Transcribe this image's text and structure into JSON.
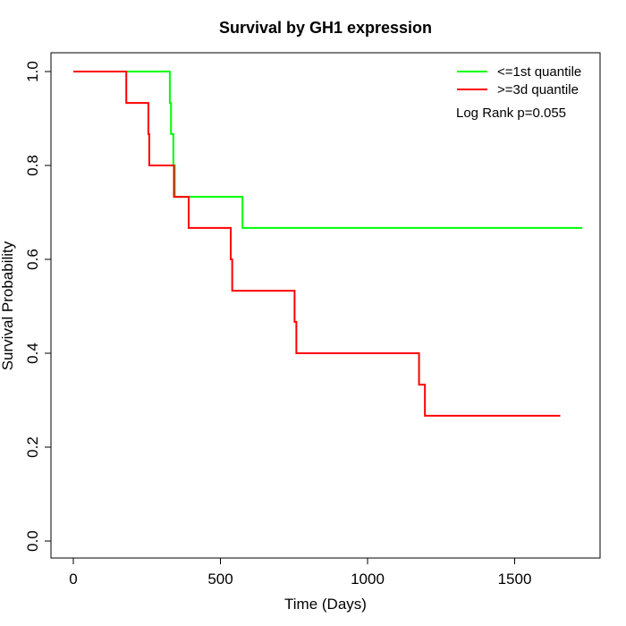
{
  "chart_data": {
    "type": "line",
    "step": true,
    "title": "Survival by GH1 expression",
    "xlabel": "Time (Days)",
    "ylabel": "Survival Probability",
    "xlim": [
      0,
      1750
    ],
    "ylim": [
      0,
      1
    ],
    "x_ticks": [
      0,
      500,
      1000,
      1500
    ],
    "y_ticks": [
      0.0,
      0.2,
      0.4,
      0.6,
      0.8,
      1.0
    ],
    "x_tick_labels": [
      "0",
      "500",
      "1000",
      "1500"
    ],
    "y_tick_labels": [
      "0.0",
      "0.2",
      "0.4",
      "0.6",
      "0.8",
      "1.0"
    ],
    "grid": false,
    "legend_position": "top-right",
    "series": [
      {
        "name": "<=1st quantile",
        "color": "#00ff00",
        "x": [
          0,
          328,
          332,
          340,
          345,
          575,
          1730
        ],
        "y": [
          1.0,
          0.933,
          0.867,
          0.8,
          0.733,
          0.667,
          0.667
        ]
      },
      {
        "name": ">=3d quantile",
        "color": "#ff0000",
        "x": [
          0,
          180,
          255,
          258,
          342,
          392,
          535,
          540,
          752,
          758,
          1175,
          1195,
          1655
        ],
        "y": [
          1.0,
          0.933,
          0.867,
          0.8,
          0.733,
          0.667,
          0.6,
          0.533,
          0.467,
          0.4,
          0.333,
          0.267,
          0.267
        ]
      }
    ],
    "annotations": [
      "Log Rank p=0.055"
    ]
  }
}
